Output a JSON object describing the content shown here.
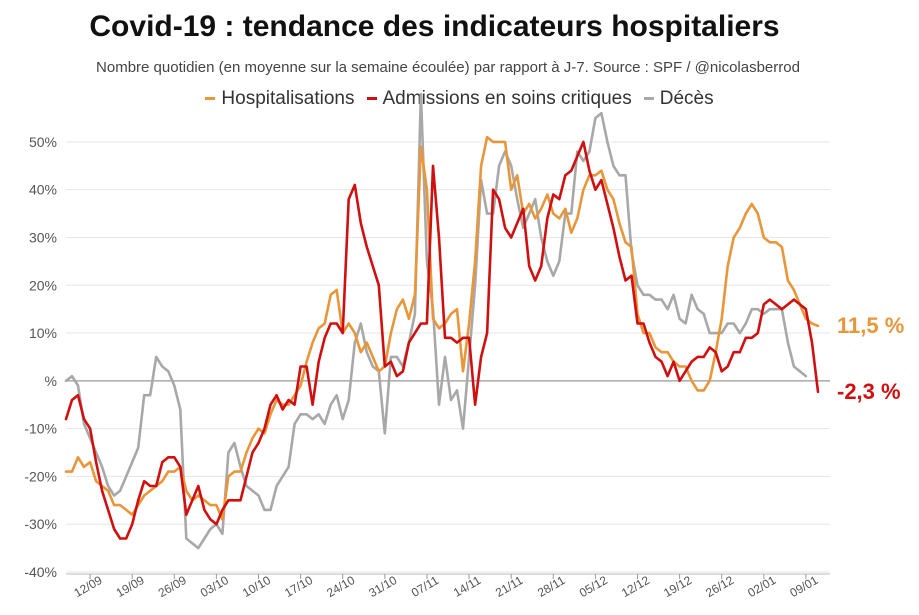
{
  "chart_data": {
    "type": "line",
    "title": "Covid-19 : tendance des indicateurs hospitaliers",
    "subtitle": "Nombre quotidien (en moyenne sur la semaine écoulée) par rapport à J-7. Source : SPF / @nicolasberrod",
    "legend_position": "top",
    "grid": true,
    "ylim": [
      -40,
      55
    ],
    "yticks": [
      "50%",
      "40%",
      "30%",
      "20%",
      "10%",
      "%",
      "-10%",
      "-20%",
      "-30%",
      "-40%"
    ],
    "ytick_values": [
      50,
      40,
      30,
      20,
      10,
      0,
      -10,
      -20,
      -30,
      -40
    ],
    "x_start_day": 0,
    "x_end_day": 127,
    "xticks": [
      "12/09",
      "19/09",
      "26/09",
      "03/10",
      "10/10",
      "17/10",
      "24/10",
      "31/10",
      "07/11",
      "14/11",
      "21/11",
      "28/11",
      "05/12",
      "12/12",
      "19/12",
      "26/12",
      "02/01",
      "09/01"
    ],
    "xtick_days": [
      4,
      11,
      18,
      25,
      32,
      39,
      46,
      53,
      60,
      67,
      74,
      81,
      88,
      95,
      102,
      109,
      116,
      123
    ],
    "end_labels": [
      {
        "series": "Hospitalisations",
        "text": "11,5 %",
        "value": 11.5
      },
      {
        "series": "Admissions en soins critiques",
        "text": "-2,3 %",
        "value": -2.3
      }
    ],
    "series": [
      {
        "name": "Hospitalisations",
        "color": "#E8963A",
        "values": [
          -19,
          -19,
          -16,
          -18,
          -17,
          -21,
          -22,
          -23,
          -26,
          -26,
          -27,
          -28,
          -26,
          -24,
          -23,
          -22,
          -21,
          -19,
          -19,
          -18,
          -23,
          -25,
          -24,
          -25,
          -26,
          -26,
          -29,
          -20,
          -19,
          -19,
          -15,
          -12,
          -10,
          -11,
          -7,
          -4,
          -5,
          -5,
          -3,
          -1,
          4,
          8,
          11,
          12,
          18,
          19,
          10,
          12,
          10,
          6,
          8,
          5,
          2,
          3,
          10,
          15,
          17,
          13,
          18,
          49,
          40,
          13,
          11,
          12,
          14,
          15,
          2,
          12,
          25,
          45,
          51,
          50,
          50,
          50,
          40,
          43,
          35,
          37,
          34,
          36,
          39,
          35,
          34,
          36,
          31,
          34,
          40,
          43,
          43,
          44,
          40,
          38,
          33,
          29,
          28,
          14,
          10,
          10,
          7,
          6,
          6,
          4,
          3,
          3,
          0,
          -2,
          -2,
          0,
          6,
          13,
          24,
          30,
          32,
          35,
          37,
          35,
          30,
          29,
          29,
          28,
          21,
          19,
          16,
          13,
          12,
          11.5
        ]
      },
      {
        "name": "Admissions en soins critiques",
        "color": "#D01010",
        "values": [
          -8,
          -4,
          -3,
          -8,
          -10,
          -17,
          -23,
          -27,
          -31,
          -33,
          -33,
          -30,
          -25,
          -21,
          -22,
          -22,
          -17,
          -16,
          -16,
          -18,
          -28,
          -25,
          -22,
          -27,
          -29,
          -30,
          -27,
          -25,
          -25,
          -25,
          -20,
          -15,
          -13,
          -10,
          -5,
          -3,
          -6,
          -4,
          -5,
          3,
          3,
          -5,
          4,
          9,
          12,
          12,
          10,
          38,
          41,
          33,
          28,
          24,
          20,
          3,
          4,
          1,
          2,
          8,
          10,
          12,
          12,
          45,
          30,
          9,
          9,
          8,
          9,
          9,
          -5,
          5,
          10,
          40,
          38,
          32,
          30,
          33,
          36,
          24,
          21,
          24,
          34,
          39,
          38,
          43,
          44,
          47,
          50,
          44,
          40,
          42,
          37,
          32,
          26,
          21,
          22,
          12,
          12,
          8,
          5,
          4,
          1,
          4,
          0,
          2,
          4,
          5,
          5,
          7,
          6,
          2,
          3,
          6,
          6,
          9,
          9,
          10,
          16,
          17,
          16,
          15,
          16,
          17,
          16,
          15,
          8,
          -2.3
        ]
      },
      {
        "name": "Décès",
        "color": "#A8A8A8",
        "values": [
          0,
          1,
          -1,
          -9,
          -12,
          -15,
          -18,
          -22,
          -24,
          -23,
          -20,
          -17,
          -14,
          -3,
          -3,
          5,
          3,
          2,
          -1,
          -6,
          -33,
          -34,
          -35,
          -33,
          -31,
          -30,
          -32,
          -15,
          -13,
          -18,
          -22,
          -23,
          -24,
          -27,
          -27,
          -22,
          -20,
          -18,
          -9,
          -7,
          -7,
          -8,
          -7,
          -9,
          -5,
          -3,
          -8,
          -4,
          8,
          12,
          6,
          3,
          2,
          -11,
          5,
          5,
          3,
          8,
          14,
          60,
          25,
          15,
          -5,
          5,
          -4,
          -2,
          -10,
          5,
          20,
          42,
          35,
          35,
          45,
          48,
          45,
          38,
          32,
          35,
          38,
          30,
          25,
          22,
          25,
          35,
          35,
          48,
          46,
          48,
          55,
          56,
          50,
          45,
          43,
          43,
          27,
          20,
          18,
          18,
          17,
          17,
          15,
          18,
          13,
          12,
          18,
          15,
          14,
          10,
          10,
          10,
          12,
          12,
          10,
          12,
          15,
          15,
          14,
          15,
          15,
          15,
          8,
          3,
          2,
          1
        ]
      }
    ]
  }
}
